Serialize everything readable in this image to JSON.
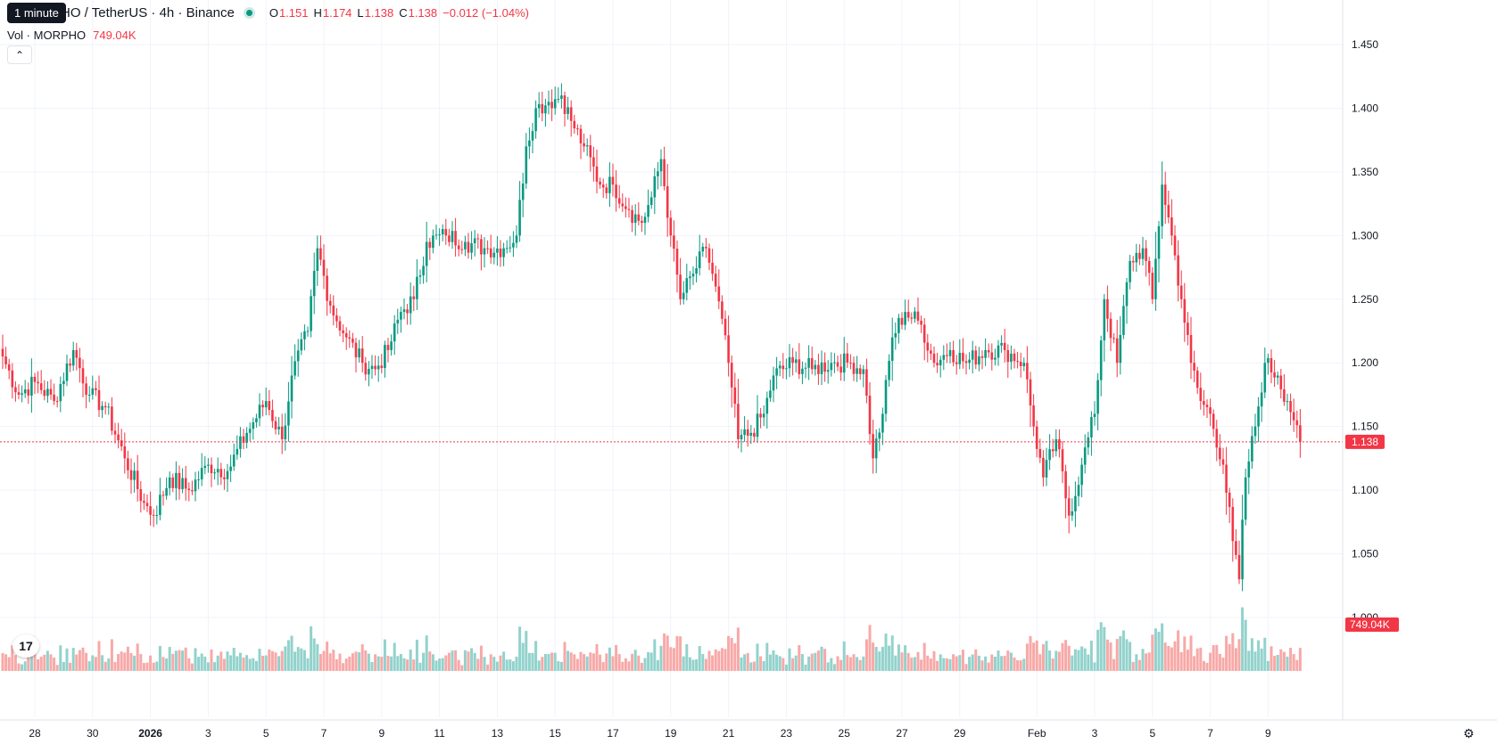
{
  "header": {
    "tooltip": "1 minute",
    "symbol_title": "HO / TetherUS · 4h · Binance",
    "ohlc": [
      {
        "label": "O",
        "value": "1.151"
      },
      {
        "label": "H",
        "value": "1.174"
      },
      {
        "label": "L",
        "value": "1.138"
      },
      {
        "label": "C",
        "value": "1.138"
      }
    ],
    "change": "−0.012 (−1.04%)",
    "volume_label": "Vol · MORPHO",
    "volume_value": "749.04K"
  },
  "colors": {
    "up": "#089981",
    "down": "#f23645",
    "up_volume": "#92d2cc",
    "down_volume": "#f7a9a7",
    "grid": "#f0f3fa",
    "text": "#131722"
  },
  "icons": {
    "collapse": "chevron-up-icon",
    "logo": "tradingview-logo-icon",
    "settings": "gear-icon"
  },
  "chart_data": {
    "type": "candlestick",
    "timeframe": "4h",
    "price_axis": {
      "ticks": [
        "1.450",
        "1.400",
        "1.350",
        "1.300",
        "1.250",
        "1.200",
        "1.150",
        "1.100",
        "1.050",
        "1.000"
      ],
      "ylim": [
        0.95,
        1.47
      ]
    },
    "last_price_label": "1.138",
    "last_volume_label": "749.04K",
    "x_ticks": [
      {
        "label": "28",
        "i": 10
      },
      {
        "label": "30",
        "i": 28
      },
      {
        "label": "2026",
        "i": 46
      },
      {
        "label": "3",
        "i": 64
      },
      {
        "label": "5",
        "i": 82
      },
      {
        "label": "7",
        "i": 100
      },
      {
        "label": "9",
        "i": 118
      },
      {
        "label": "11",
        "i": 136
      },
      {
        "label": "13",
        "i": 154
      },
      {
        "label": "15",
        "i": 172
      },
      {
        "label": "17",
        "i": 190
      },
      {
        "label": "19",
        "i": 208
      },
      {
        "label": "21",
        "i": 226
      },
      {
        "label": "23",
        "i": 244
      },
      {
        "label": "25",
        "i": 262
      },
      {
        "label": "27",
        "i": 280
      },
      {
        "label": "29",
        "i": 298
      },
      {
        "label": "Feb",
        "i": 322
      },
      {
        "label": "3",
        "i": 340
      },
      {
        "label": "5",
        "i": 358
      },
      {
        "label": "7",
        "i": 376
      },
      {
        "label": "9",
        "i": 394
      }
    ],
    "series": [
      {
        "name": "price",
        "anchors": [
          [
            0,
            1.205
          ],
          [
            5,
            1.175
          ],
          [
            10,
            1.185
          ],
          [
            16,
            1.17
          ],
          [
            22,
            1.21
          ],
          [
            27,
            1.175
          ],
          [
            32,
            1.165
          ],
          [
            38,
            1.125
          ],
          [
            44,
            1.09
          ],
          [
            47,
            1.08
          ],
          [
            52,
            1.11
          ],
          [
            58,
            1.1
          ],
          [
            64,
            1.12
          ],
          [
            70,
            1.115
          ],
          [
            76,
            1.145
          ],
          [
            82,
            1.17
          ],
          [
            87,
            1.14
          ],
          [
            90,
            1.19
          ],
          [
            95,
            1.225
          ],
          [
            98,
            1.29
          ],
          [
            102,
            1.245
          ],
          [
            107,
            1.22
          ],
          [
            112,
            1.2
          ],
          [
            116,
            1.195
          ],
          [
            120,
            1.21
          ],
          [
            124,
            1.24
          ],
          [
            128,
            1.25
          ],
          [
            132,
            1.295
          ],
          [
            138,
            1.3
          ],
          [
            144,
            1.295
          ],
          [
            150,
            1.29
          ],
          [
            156,
            1.29
          ],
          [
            160,
            1.3
          ],
          [
            163,
            1.37
          ],
          [
            166,
            1.4
          ],
          [
            170,
            1.405
          ],
          [
            174,
            1.41
          ],
          [
            177,
            1.39
          ],
          [
            181,
            1.37
          ],
          [
            186,
            1.34
          ],
          [
            190,
            1.34
          ],
          [
            195,
            1.32
          ],
          [
            199,
            1.31
          ],
          [
            202,
            1.33
          ],
          [
            205,
            1.36
          ],
          [
            208,
            1.3
          ],
          [
            211,
            1.25
          ],
          [
            215,
            1.27
          ],
          [
            219,
            1.29
          ],
          [
            222,
            1.26
          ],
          [
            226,
            1.2
          ],
          [
            229,
            1.14
          ],
          [
            233,
            1.145
          ],
          [
            237,
            1.16
          ],
          [
            240,
            1.19
          ],
          [
            246,
            1.2
          ],
          [
            252,
            1.195
          ],
          [
            258,
            1.2
          ],
          [
            264,
            1.2
          ],
          [
            268,
            1.195
          ],
          [
            271,
            1.125
          ],
          [
            274,
            1.16
          ],
          [
            277,
            1.22
          ],
          [
            281,
            1.24
          ],
          [
            286,
            1.23
          ],
          [
            290,
            1.2
          ],
          [
            295,
            1.21
          ],
          [
            300,
            1.2
          ],
          [
            306,
            1.21
          ],
          [
            312,
            1.21
          ],
          [
            318,
            1.2
          ],
          [
            321,
            1.15
          ],
          [
            324,
            1.11
          ],
          [
            328,
            1.14
          ],
          [
            332,
            1.08
          ],
          [
            336,
            1.12
          ],
          [
            340,
            1.16
          ],
          [
            343,
            1.25
          ],
          [
            347,
            1.2
          ],
          [
            351,
            1.28
          ],
          [
            355,
            1.29
          ],
          [
            358,
            1.25
          ],
          [
            361,
            1.34
          ],
          [
            364,
            1.3
          ],
          [
            367,
            1.25
          ],
          [
            370,
            1.2
          ],
          [
            373,
            1.17
          ],
          [
            376,
            1.16
          ],
          [
            380,
            1.12
          ],
          [
            383,
            1.06
          ],
          [
            385,
            1.03
          ],
          [
            387,
            1.11
          ],
          [
            390,
            1.15
          ],
          [
            393,
            1.2
          ],
          [
            397,
            1.19
          ],
          [
            400,
            1.17
          ],
          [
            403,
            1.151
          ],
          [
            404,
            1.138
          ]
        ]
      }
    ]
  }
}
